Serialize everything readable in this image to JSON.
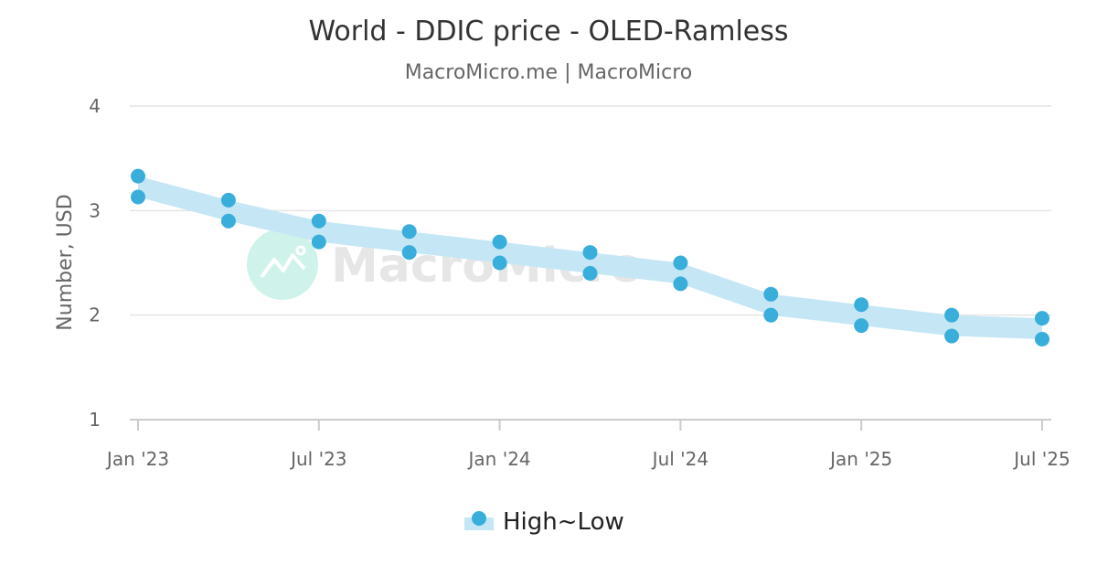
{
  "chart_data": {
    "type": "area",
    "title": "World - DDIC price - OLED-Ramless",
    "subtitle": "MacroMicro.me | MacroMicro",
    "ylabel": "Number, USD",
    "xlabel": "",
    "ylim": [
      1,
      4
    ],
    "yticks": [
      "1",
      "2",
      "3",
      "4"
    ],
    "x_tick_labels": [
      "Jan '23",
      "Jul '23",
      "Jan '24",
      "Jul '24",
      "Jan '25",
      "Jul '25"
    ],
    "x_start": "2023-01",
    "x_end": "2025-07",
    "series": [
      {
        "name": "High~Low",
        "color": "#3aaedb",
        "band_color": "#c5e7f5",
        "points": [
          {
            "date": "2023-01",
            "high": 3.33,
            "low": 3.13
          },
          {
            "date": "2023-04",
            "high": 3.1,
            "low": 2.9
          },
          {
            "date": "2023-07",
            "high": 2.9,
            "low": 2.7
          },
          {
            "date": "2023-10",
            "high": 2.8,
            "low": 2.6
          },
          {
            "date": "2024-01",
            "high": 2.7,
            "low": 2.5
          },
          {
            "date": "2024-04",
            "high": 2.6,
            "low": 2.4
          },
          {
            "date": "2024-07",
            "high": 2.5,
            "low": 2.3
          },
          {
            "date": "2024-10",
            "high": 2.2,
            "low": 2.0
          },
          {
            "date": "2025-01",
            "high": 2.1,
            "low": 1.9
          },
          {
            "date": "2025-04",
            "high": 2.0,
            "low": 1.8
          },
          {
            "date": "2025-07",
            "high": 1.97,
            "low": 1.77
          }
        ]
      }
    ],
    "legend": {
      "position": "bottom",
      "label": "High~Low"
    },
    "grid": true
  },
  "watermark": {
    "text": "MacroMicro",
    "icon": "macromicro-logo-icon"
  }
}
